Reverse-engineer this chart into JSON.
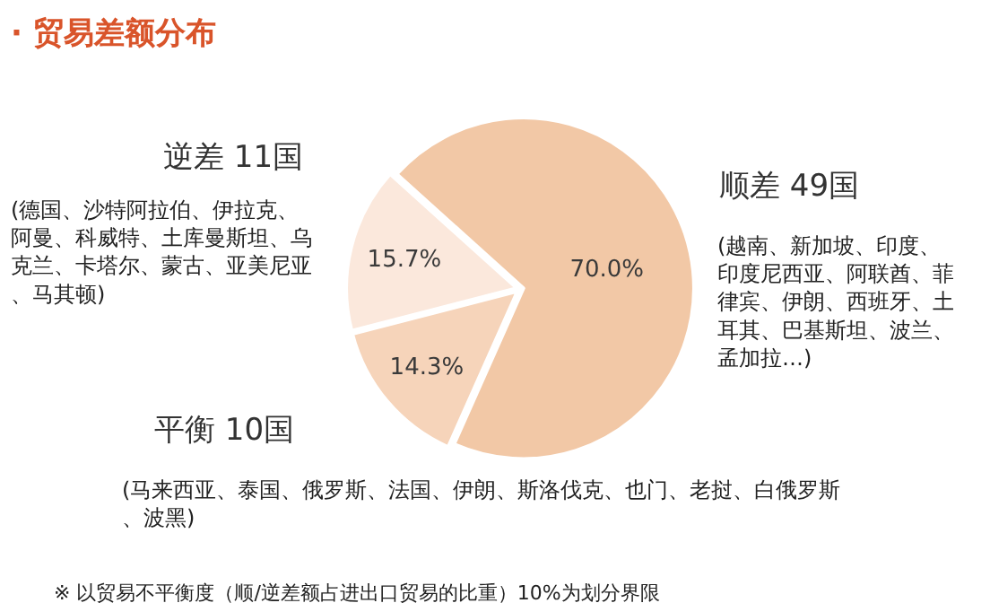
{
  "chart_data": {
    "type": "pie",
    "title": "· 贸易差额分布",
    "categories": [
      "顺差 49国",
      "平衡 10国",
      "逆差 11国"
    ],
    "values": [
      70.0,
      14.3,
      15.7
    ],
    "value_labels": [
      "70.0%",
      "14.3%",
      "15.7%"
    ],
    "colors": [
      "#f2c8a6",
      "#f6d4ba",
      "#fbe8dc"
    ],
    "annotations": [
      "(越南、新加坡、印度、印度尼西亚、阿联酋、菲律宾、伊朗、西班牙、土耳其、巴基斯坦、波兰、孟加拉…)",
      "(马来西亚、泰国、俄罗斯、法国、伊朗、斯洛伐克、也门、老挝、白俄罗斯、波黑)",
      "(德国、沙特阿拉伯、伊拉克、阿曼、科威特、土库曼斯坦、乌克兰、卡塔尔、蒙古、亚美尼亚、马其顿)",
      "※ 以贸易不平衡度（顺/逆差额占进出口贸易的比重）10%为划分界限"
    ],
    "legend": false
  }
}
